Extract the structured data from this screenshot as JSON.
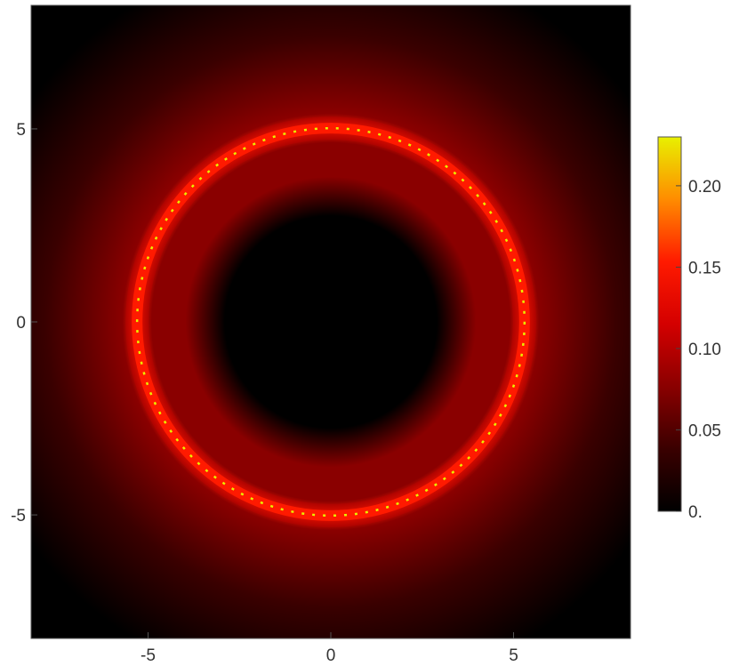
{
  "chart_data": {
    "type": "heatmap",
    "title": "",
    "xlabel": "",
    "ylabel": "",
    "xlim": [
      -8.2,
      8.2
    ],
    "ylim": [
      -8.2,
      8.2
    ],
    "x_ticks": [
      {
        "value": -5,
        "label": "-5"
      },
      {
        "value": 0,
        "label": "0"
      },
      {
        "value": 5,
        "label": "5"
      }
    ],
    "y_ticks": [
      {
        "value": 5,
        "label": "5"
      },
      {
        "value": 0,
        "label": "0"
      },
      {
        "value": -5,
        "label": "-5"
      }
    ],
    "field": {
      "description_of_shape": "radially symmetric intensity",
      "dark_core_radius": 2.9,
      "ring_radius": 5.3,
      "ring_peak_value": 0.23,
      "ring_body_value": 0.16,
      "inner_annulus_value": 0.06,
      "outer_value_at_edge": 0.03
    },
    "colorbar": {
      "range": [
        0,
        0.23
      ],
      "ticks": [
        {
          "value": 0,
          "label": "0."
        },
        {
          "value": 0.05,
          "label": "0.05"
        },
        {
          "value": 0.1,
          "label": "0.10"
        },
        {
          "value": 0.15,
          "label": "0.15"
        },
        {
          "value": 0.2,
          "label": "0.20"
        }
      ],
      "colors": [
        "#000000",
        "#3a0000",
        "#8a0000",
        "#d40000",
        "#ff1a00",
        "#ff8c00",
        "#e8f000"
      ]
    },
    "grid": false
  }
}
